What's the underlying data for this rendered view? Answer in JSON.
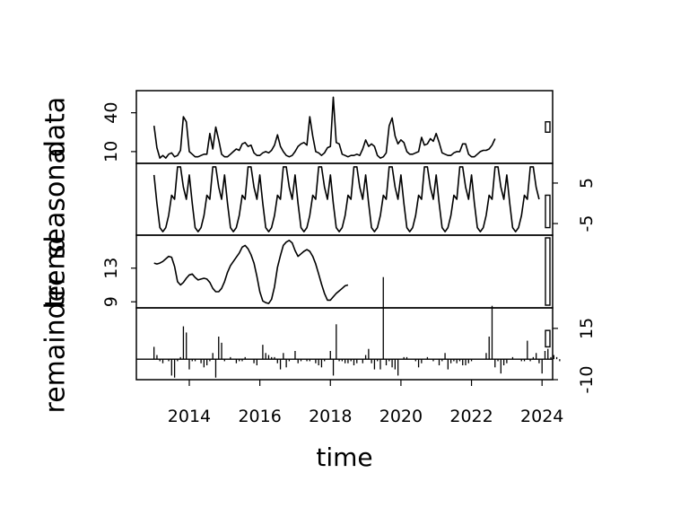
{
  "chart_data": {
    "type": "line",
    "subtype": "stl-decomposition",
    "xlabel": "time",
    "x_ticks": [
      2014,
      2016,
      2018,
      2020,
      2022,
      2024
    ],
    "xlim": [
      2012.5,
      2024.3
    ],
    "start": 2013.0,
    "frequency": 12,
    "panels": [
      {
        "name": "data",
        "ylabel": "data",
        "y_ticks": [
          10,
          40
        ],
        "tick_side": "left",
        "ylim": [
          3,
          55
        ],
        "bar_range": [
          25,
          33
        ],
        "style": "line",
        "values": [
          30,
          13,
          5,
          7,
          5,
          8,
          9,
          6,
          7,
          11,
          37,
          33,
          10,
          8,
          6,
          6,
          7,
          8,
          8,
          24,
          12,
          29,
          19,
          8,
          6,
          6,
          8,
          10,
          12,
          11,
          16,
          17,
          14,
          15,
          9,
          7,
          7,
          9,
          10,
          9,
          11,
          15,
          23,
          14,
          10,
          7,
          6,
          7,
          10,
          14,
          16,
          17,
          15,
          37,
          22,
          10,
          9,
          7,
          9,
          13,
          14,
          52,
          17,
          16,
          8,
          7,
          6,
          7,
          7,
          8,
          7,
          12,
          19,
          14,
          16,
          14,
          7,
          5,
          6,
          9,
          30,
          36,
          22,
          16,
          19,
          17,
          10,
          8,
          8,
          9,
          10,
          21,
          15,
          16,
          20,
          18,
          24,
          17,
          9,
          8,
          7,
          7,
          9,
          10,
          10,
          16,
          16,
          8,
          6,
          6,
          8,
          10,
          11,
          11,
          12,
          15,
          20
        ]
      },
      {
        "name": "seasonal",
        "ylabel": "seasonal",
        "y_ticks": [
          -5,
          5
        ],
        "tick_side": "right",
        "ylim": [
          -7.2,
          9.2
        ],
        "bar_range": [
          -6,
          2
        ],
        "style": "line",
        "cycle": [
          7,
          0,
          -6,
          -7,
          -6,
          -3,
          2,
          1,
          9,
          9,
          4,
          1
        ]
      },
      {
        "name": "trend",
        "ylabel": "trend",
        "y_ticks": [
          9,
          13
        ],
        "tick_side": "left",
        "ylim": [
          8.6,
          16.6
        ],
        "bar_range": [
          8.6,
          16.6
        ],
        "style": "line",
        "values": [
          13.6,
          13.5,
          13.6,
          13.8,
          14.1,
          14.4,
          14.3,
          13.2,
          11.4,
          11.0,
          11.3,
          11.8,
          12.2,
          12.3,
          11.9,
          11.6,
          11.7,
          11.8,
          11.7,
          11.3,
          10.6,
          10.2,
          10.2,
          10.6,
          11.4,
          12.5,
          13.3,
          13.8,
          14.3,
          14.8,
          15.5,
          15.7,
          15.3,
          14.6,
          13.6,
          12.0,
          10.2,
          9.1,
          8.9,
          8.8,
          9.3,
          10.8,
          13.1,
          14.5,
          15.7,
          16.1,
          16.3,
          16.0,
          15.1,
          14.4,
          14.7,
          15.0,
          15.2,
          15.0,
          14.4,
          13.5,
          12.3,
          11.1,
          10.0,
          9.2,
          9.2,
          9.6,
          10.0,
          10.3,
          10.6,
          10.9,
          11.0
        ]
      },
      {
        "name": "remainder",
        "ylabel": "remainder",
        "y_ticks": [
          -10,
          15
        ],
        "tick_side": "right",
        "ylim": [
          -10,
          25
        ],
        "bar_range": [
          6,
          14
        ],
        "style": "bars",
        "values": [
          6,
          2,
          -1,
          -2,
          0,
          -1,
          -8,
          -9,
          -1,
          1,
          16,
          13,
          -5,
          -1,
          -1,
          0,
          -2,
          -4,
          -3,
          -1,
          3,
          -9,
          11,
          8,
          -1,
          0,
          1,
          0,
          -2,
          -1,
          -1,
          1,
          0,
          0,
          -2,
          -3,
          0,
          7,
          3,
          2,
          1,
          1,
          -2,
          -5,
          3,
          -4,
          -1,
          0,
          4,
          -2,
          -1,
          0,
          -1,
          -1,
          0,
          -2,
          -3,
          -4,
          -1,
          0,
          4,
          -8,
          17,
          -1,
          -1,
          -2,
          -2,
          -1,
          -3,
          -2,
          0,
          -2,
          2,
          5,
          -2,
          -5,
          -1,
          -5,
          40,
          -3,
          -1,
          -4,
          -5,
          -8,
          0,
          1,
          1,
          0,
          0,
          -1,
          -4,
          -2,
          0,
          1,
          0,
          -1,
          0,
          -3,
          -1,
          3,
          -5,
          -2,
          -1,
          -2,
          -1,
          -3,
          -3,
          -2,
          -1,
          0,
          0,
          0,
          0,
          3,
          11,
          26,
          -4,
          -1,
          -7,
          -3,
          -2,
          0,
          1,
          0,
          0,
          -1,
          -1,
          9,
          -1,
          1,
          3,
          -2,
          -7,
          4,
          5,
          1,
          2,
          1,
          -1
        ]
      }
    ]
  }
}
